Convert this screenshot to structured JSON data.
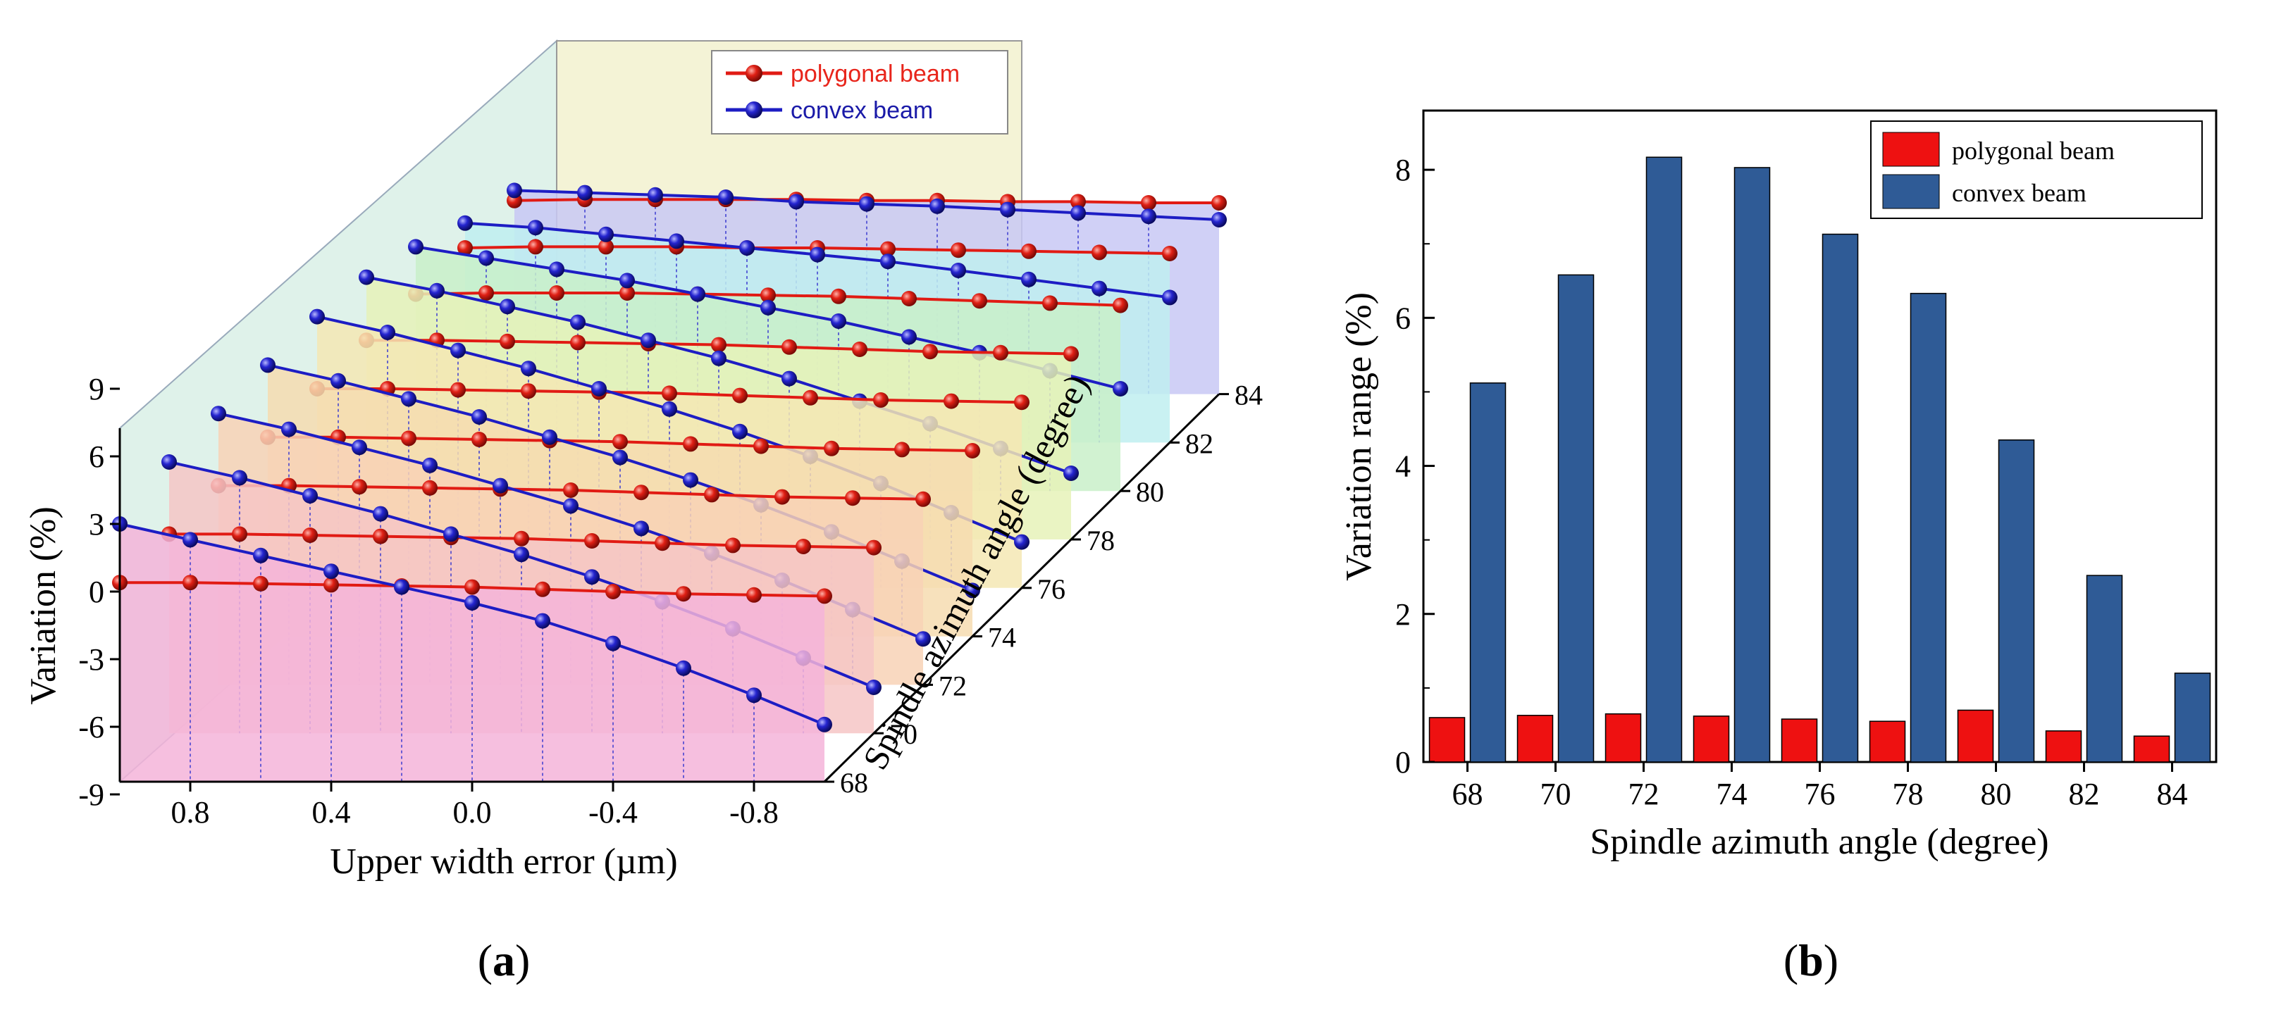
{
  "colors": {
    "polygonal": "#e11b14",
    "convex": "#1d1dc4",
    "bar_polygonal": "#ee1111",
    "bar_convex": "#2f5b96",
    "axis": "#000000"
  },
  "chart_data": [
    {
      "panel": "a",
      "type": "line",
      "projection": "3d",
      "title": "",
      "caption_prefix": "(",
      "caption_letter": "a",
      "caption_suffix": ")",
      "xlabel": "Upper width error (µm)",
      "ylabel": "Variation (%)",
      "zlabel": "Spindle azimuth angle (degree)",
      "xlim": [
        1.0,
        -1.0
      ],
      "ylim": [
        -9,
        9
      ],
      "x_ticks": [
        "0.8",
        "0.4",
        "0.0",
        "-0.4",
        "-0.8"
      ],
      "y_ticks": [
        "9",
        "6",
        "3",
        "0",
        "-3",
        "-6",
        "-9"
      ],
      "z_ticks": [
        "68",
        "70",
        "72",
        "74",
        "76",
        "78",
        "80",
        "82",
        "84"
      ],
      "x": [
        1.0,
        0.8,
        0.6,
        0.4,
        0.2,
        0.0,
        -0.2,
        -0.4,
        -0.6,
        -0.8,
        -1.0
      ],
      "legend": [
        "polygonal beam",
        "convex beam"
      ],
      "legend_position": "top-right",
      "series": [
        {
          "angle": 68,
          "name": "polygonal beam",
          "values": [
            0.4,
            0.4,
            0.35,
            0.3,
            0.25,
            0.2,
            0.1,
            0.0,
            -0.1,
            -0.15,
            -0.2
          ]
        },
        {
          "angle": 68,
          "name": "convex beam",
          "values": [
            3.0,
            2.3,
            1.6,
            0.9,
            0.2,
            -0.5,
            -1.3,
            -2.3,
            -3.4,
            -4.6,
            -5.9
          ]
        },
        {
          "angle": 70,
          "name": "polygonal beam",
          "values": [
            0.4,
            0.4,
            0.35,
            0.3,
            0.25,
            0.2,
            0.1,
            0.0,
            -0.1,
            -0.15,
            -0.2
          ]
        },
        {
          "angle": 70,
          "name": "convex beam",
          "values": [
            3.6,
            2.9,
            2.1,
            1.3,
            0.4,
            -0.5,
            -1.5,
            -2.6,
            -3.8,
            -5.1,
            -6.4
          ]
        },
        {
          "angle": 72,
          "name": "polygonal beam",
          "values": [
            0.4,
            0.4,
            0.35,
            0.3,
            0.25,
            0.2,
            0.1,
            0.0,
            -0.1,
            -0.15,
            -0.2
          ]
        },
        {
          "angle": 72,
          "name": "convex beam",
          "values": [
            3.6,
            2.9,
            2.1,
            1.3,
            0.4,
            -0.5,
            -1.5,
            -2.6,
            -3.8,
            -5.1,
            -6.4
          ]
        },
        {
          "angle": 74,
          "name": "polygonal beam",
          "values": [
            0.4,
            0.4,
            0.35,
            0.3,
            0.25,
            0.2,
            0.1,
            0.0,
            -0.1,
            -0.15,
            -0.2
          ]
        },
        {
          "angle": 74,
          "name": "convex beam",
          "values": [
            3.6,
            2.9,
            2.1,
            1.3,
            0.4,
            -0.5,
            -1.5,
            -2.6,
            -3.8,
            -5.1,
            -6.4
          ]
        },
        {
          "angle": 76,
          "name": "polygonal beam",
          "values": [
            0.4,
            0.4,
            0.35,
            0.3,
            0.25,
            0.2,
            0.1,
            0.0,
            -0.1,
            -0.15,
            -0.2
          ]
        },
        {
          "angle": 76,
          "name": "convex beam",
          "values": [
            3.6,
            2.9,
            2.1,
            1.3,
            0.4,
            -0.5,
            -1.5,
            -2.6,
            -3.8,
            -5.1,
            -6.4
          ]
        },
        {
          "angle": 78,
          "name": "polygonal beam",
          "values": [
            0.4,
            0.4,
            0.35,
            0.3,
            0.25,
            0.2,
            0.1,
            0.0,
            -0.1,
            -0.15,
            -0.2
          ]
        },
        {
          "angle": 78,
          "name": "convex beam",
          "values": [
            3.2,
            2.6,
            1.9,
            1.2,
            0.4,
            -0.4,
            -1.3,
            -2.3,
            -3.3,
            -4.4,
            -5.5
          ]
        },
        {
          "angle": 80,
          "name": "polygonal beam",
          "values": [
            0.3,
            0.35,
            0.35,
            0.35,
            0.3,
            0.25,
            0.2,
            0.1,
            0.0,
            -0.1,
            -0.2
          ]
        },
        {
          "angle": 80,
          "name": "convex beam",
          "values": [
            2.4,
            1.9,
            1.4,
            0.9,
            0.3,
            -0.3,
            -0.9,
            -1.6,
            -2.3,
            -3.1,
            -3.9
          ]
        },
        {
          "angle": 82,
          "name": "polygonal beam",
          "values": [
            0.2,
            0.25,
            0.25,
            0.25,
            0.2,
            0.2,
            0.15,
            0.1,
            0.05,
            0.0,
            -0.05
          ]
        },
        {
          "angle": 82,
          "name": "convex beam",
          "values": [
            1.3,
            1.1,
            0.8,
            0.5,
            0.2,
            -0.1,
            -0.4,
            -0.8,
            -1.2,
            -1.6,
            -2.0
          ]
        },
        {
          "angle": 84,
          "name": "polygonal beam",
          "values": [
            0.15,
            0.2,
            0.2,
            0.2,
            0.2,
            0.15,
            0.15,
            0.1,
            0.1,
            0.05,
            0.05
          ]
        },
        {
          "angle": 84,
          "name": "convex beam",
          "values": [
            0.6,
            0.5,
            0.4,
            0.3,
            0.1,
            0.0,
            -0.1,
            -0.25,
            -0.4,
            -0.55,
            -0.7
          ]
        }
      ]
    },
    {
      "panel": "b",
      "type": "bar",
      "title": "",
      "caption_prefix": "(",
      "caption_letter": "b",
      "caption_suffix": ")",
      "xlabel": "Spindle azimuth angle (degree)",
      "ylabel": "Variation range (%)",
      "ylim": [
        0,
        8.8
      ],
      "y_ticks": [
        "0",
        "2",
        "4",
        "6",
        "8"
      ],
      "categories": [
        "68",
        "70",
        "72",
        "74",
        "76",
        "78",
        "80",
        "82",
        "84"
      ],
      "series": [
        {
          "name": "polygonal beam",
          "values": [
            0.6,
            0.63,
            0.65,
            0.62,
            0.58,
            0.55,
            0.7,
            0.42,
            0.35
          ]
        },
        {
          "name": "convex beam",
          "values": [
            5.12,
            6.58,
            8.17,
            8.03,
            7.13,
            6.33,
            4.35,
            2.52,
            1.2
          ]
        }
      ],
      "legend_position": "top-right"
    }
  ]
}
